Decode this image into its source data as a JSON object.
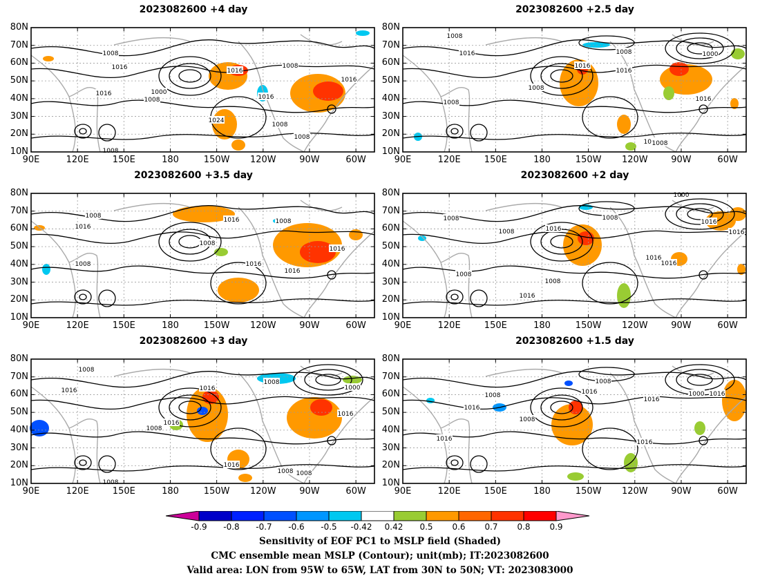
{
  "panels": [
    {
      "title": "2023082600  +4 day"
    },
    {
      "title": "2023082600  +2.5 day"
    },
    {
      "title": "2023082600  +3.5 day"
    },
    {
      "title": "2023082600  +2 day"
    },
    {
      "title": "2023082600  +3 day"
    },
    {
      "title": "2023082600  +1.5 day"
    }
  ],
  "axes": {
    "lat_labels": [
      "80N",
      "70N",
      "60N",
      "50N",
      "40N",
      "30N",
      "20N",
      "10N"
    ],
    "lon_labels": [
      "90E",
      "120E",
      "150E",
      "180",
      "150W",
      "120W",
      "90W",
      "60W"
    ]
  },
  "contour_labels": {
    "p0": [
      "1008",
      "1016",
      "1016",
      "1016",
      "1000",
      "1008",
      "1016",
      "1008",
      "1016",
      "1024",
      "1008",
      "1008",
      "1008"
    ],
    "p1": [
      "1008",
      "1016",
      "1008",
      "1016",
      "1000",
      "1016",
      "1008",
      "1016",
      "1008",
      "1016",
      "1008"
    ],
    "p2": [
      "1008",
      "1016",
      "1016",
      "1008",
      "1008",
      "1016",
      "1016",
      "1016",
      "1008"
    ],
    "p3": [
      "1008",
      "1016",
      "1008",
      "1016",
      "1008",
      "1000",
      "1016",
      "1016",
      "1016",
      "1016",
      "1008",
      "1016",
      "1008"
    ],
    "p4": [
      "1008",
      "1016",
      "1016",
      "1008",
      "1016",
      "1008",
      "1000",
      "1016",
      "1016",
      "1008",
      "1008",
      "1008"
    ],
    "p5": [
      "1008",
      "1016",
      "1008",
      "1016",
      "1016",
      "1016",
      "1000",
      "1016",
      "1008",
      "1016"
    ]
  },
  "colorbar": {
    "ticks": [
      "-0.9",
      "-0.8",
      "-0.7",
      "-0.6",
      "-0.5",
      "-0.42",
      "0.42",
      "0.5",
      "0.6",
      "0.7",
      "0.8",
      "0.9"
    ],
    "colors": [
      "#0000c8",
      "#0020ff",
      "#0050ff",
      "#0096ff",
      "#00c8f0",
      "#ffffff",
      "#99cc33",
      "#ff9900",
      "#ff6600",
      "#ff3300",
      "#ff0000"
    ],
    "low_end_color": "#cc0099",
    "high_end_color": "#ff99cc"
  },
  "captions": [
    "Sensitivity of EOF PC1 to MSLP field (Shaded)",
    "CMC ensemble mean MSLP (Contour); unit(mb); IT:2023082600",
    "Valid area: LON from 95W to 65W, LAT from 30N to 50N; VT: 2023083000"
  ]
}
